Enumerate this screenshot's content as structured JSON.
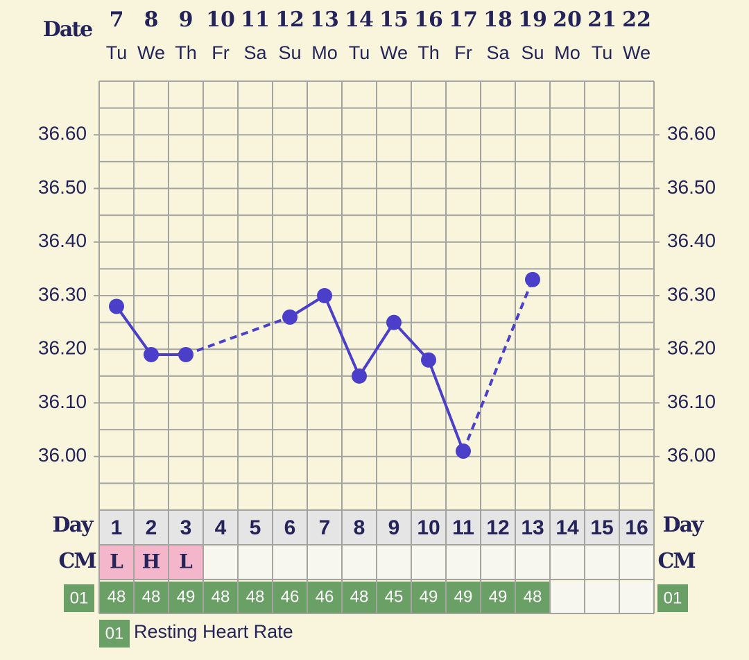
{
  "chart_data": {
    "type": "line",
    "x_label": "Date",
    "dates": [
      "7",
      "8",
      "9",
      "10",
      "11",
      "12",
      "13",
      "14",
      "15",
      "16",
      "17",
      "18",
      "19",
      "20",
      "21",
      "22"
    ],
    "weekdays": [
      "Tu",
      "We",
      "Th",
      "Fr",
      "Sa",
      "Su",
      "Mo",
      "Tu",
      "We",
      "Th",
      "Fr",
      "Sa",
      "Su",
      "Mo",
      "Tu",
      "We"
    ],
    "values": [
      36.28,
      36.19,
      36.19,
      null,
      null,
      36.26,
      36.3,
      36.15,
      36.25,
      36.18,
      36.01,
      null,
      36.33,
      null,
      null,
      null
    ],
    "color": "#4b3fc9",
    "ylim": [
      35.9,
      36.7
    ],
    "yticks": [
      {
        "value": 36.0,
        "label": "36.00"
      },
      {
        "value": 36.1,
        "label": "36.10"
      },
      {
        "value": 36.2,
        "label": "36.20"
      },
      {
        "value": 36.3,
        "label": "36.30"
      },
      {
        "value": 36.4,
        "label": "36.40"
      },
      {
        "value": 36.5,
        "label": "36.50"
      },
      {
        "value": 36.6,
        "label": "36.60"
      }
    ],
    "minor_yticks": [
      35.95,
      36.05,
      36.15,
      36.25,
      36.35,
      36.45,
      36.55,
      36.65
    ],
    "grid": true,
    "day_label": "Day",
    "days": [
      "1",
      "2",
      "3",
      "4",
      "5",
      "6",
      "7",
      "8",
      "9",
      "10",
      "11",
      "12",
      "13",
      "14",
      "15",
      "16"
    ],
    "cm_label": "CM",
    "cm": [
      "L",
      "H",
      "L",
      null,
      null,
      null,
      null,
      null,
      null,
      null,
      null,
      null,
      null,
      null,
      null,
      null
    ],
    "heart_rate_code": "01",
    "heart_rate": [
      48,
      48,
      49,
      48,
      48,
      46,
      46,
      48,
      45,
      49,
      49,
      49,
      48,
      null,
      null,
      null
    ],
    "heart_rate_legend": "Resting Heart Rate"
  }
}
